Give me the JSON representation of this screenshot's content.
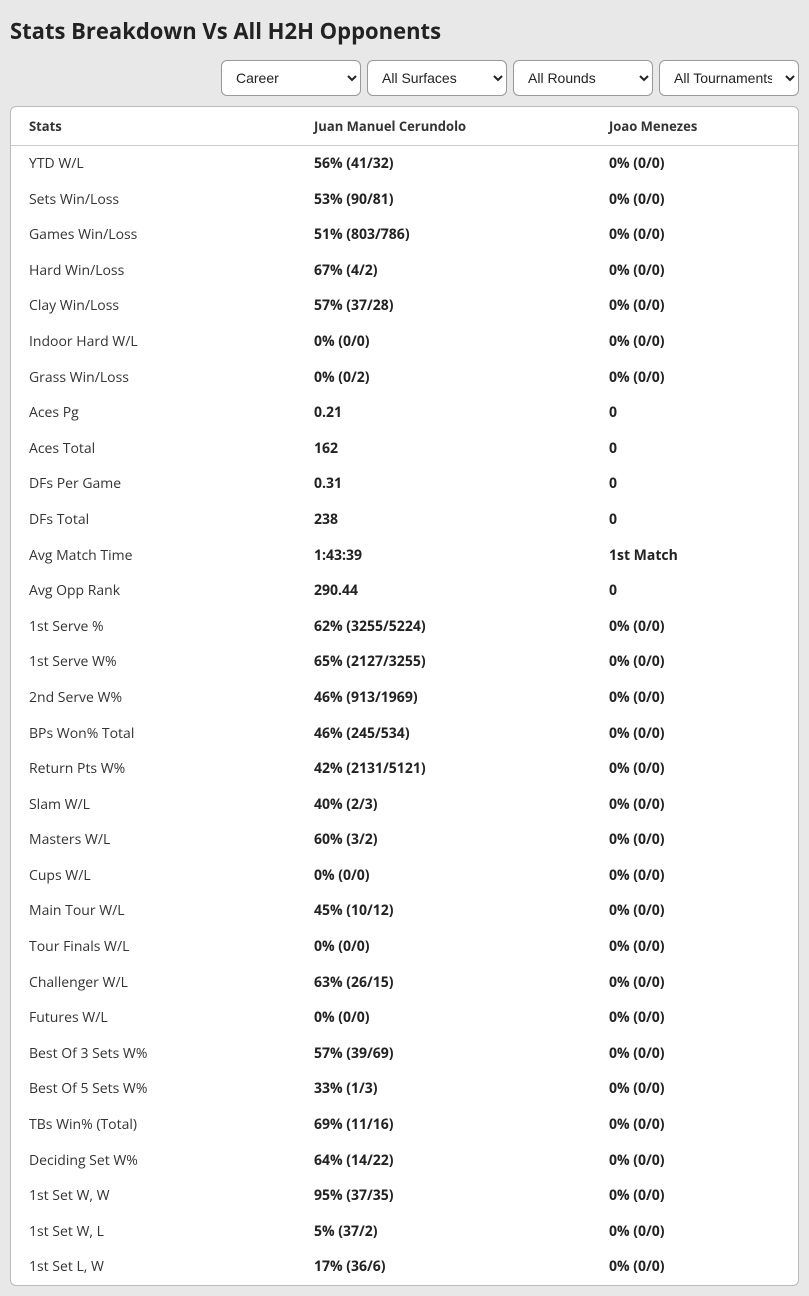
{
  "title": "Stats Breakdown Vs All H2H Opponents",
  "filters": {
    "time": "Career",
    "surface": "All Surfaces",
    "round": "All Rounds",
    "tournament": "All Tournaments"
  },
  "columns": {
    "stats": "Stats",
    "p1": "Juan Manuel Cerundolo",
    "p2": "Joao Menezes"
  },
  "rows": [
    {
      "label": "YTD W/L",
      "p1": "56% (41/32)",
      "p2": "0% (0/0)"
    },
    {
      "label": "Sets Win/Loss",
      "p1": "53% (90/81)",
      "p2": "0% (0/0)"
    },
    {
      "label": "Games Win/Loss",
      "p1": "51% (803/786)",
      "p2": "0% (0/0)"
    },
    {
      "label": "Hard Win/Loss",
      "p1": "67% (4/2)",
      "p2": "0% (0/0)"
    },
    {
      "label": "Clay Win/Loss",
      "p1": "57% (37/28)",
      "p2": "0% (0/0)"
    },
    {
      "label": "Indoor Hard W/L",
      "p1": "0% (0/0)",
      "p2": "0% (0/0)"
    },
    {
      "label": "Grass Win/Loss",
      "p1": "0% (0/2)",
      "p2": "0% (0/0)"
    },
    {
      "label": "Aces Pg",
      "p1": "0.21",
      "p2": "0"
    },
    {
      "label": "Aces Total",
      "p1": "162",
      "p2": "0"
    },
    {
      "label": "DFs Per Game",
      "p1": "0.31",
      "p2": "0"
    },
    {
      "label": "DFs Total",
      "p1": "238",
      "p2": "0"
    },
    {
      "label": "Avg Match Time",
      "p1": "1:43:39",
      "p2": "1st Match"
    },
    {
      "label": "Avg Opp Rank",
      "p1": "290.44",
      "p2": "0"
    },
    {
      "label": "1st Serve %",
      "p1": "62% (3255/5224)",
      "p2": "0% (0/0)"
    },
    {
      "label": "1st Serve W%",
      "p1": "65% (2127/3255)",
      "p2": "0% (0/0)"
    },
    {
      "label": "2nd Serve W%",
      "p1": "46% (913/1969)",
      "p2": "0% (0/0)"
    },
    {
      "label": "BPs Won% Total",
      "p1": "46% (245/534)",
      "p2": "0% (0/0)"
    },
    {
      "label": "Return Pts W%",
      "p1": "42% (2131/5121)",
      "p2": "0% (0/0)"
    },
    {
      "label": "Slam W/L",
      "p1": "40% (2/3)",
      "p2": "0% (0/0)"
    },
    {
      "label": "Masters W/L",
      "p1": "60% (3/2)",
      "p2": "0% (0/0)"
    },
    {
      "label": "Cups W/L",
      "p1": "0% (0/0)",
      "p2": "0% (0/0)"
    },
    {
      "label": "Main Tour W/L",
      "p1": "45% (10/12)",
      "p2": "0% (0/0)"
    },
    {
      "label": "Tour Finals W/L",
      "p1": "0% (0/0)",
      "p2": "0% (0/0)"
    },
    {
      "label": "Challenger W/L",
      "p1": "63% (26/15)",
      "p2": "0% (0/0)"
    },
    {
      "label": "Futures W/L",
      "p1": "0% (0/0)",
      "p2": "0% (0/0)"
    },
    {
      "label": "Best Of 3 Sets W%",
      "p1": "57% (39/69)",
      "p2": "0% (0/0)"
    },
    {
      "label": "Best Of 5 Sets W%",
      "p1": "33% (1/3)",
      "p2": "0% (0/0)"
    },
    {
      "label": "TBs Win% (Total)",
      "p1": "69% (11/16)",
      "p2": "0% (0/0)"
    },
    {
      "label": "Deciding Set W%",
      "p1": "64% (14/22)",
      "p2": "0% (0/0)"
    },
    {
      "label": "1st Set W, W",
      "p1": "95% (37/35)",
      "p2": "0% (0/0)"
    },
    {
      "label": "1st Set W, L",
      "p1": "5% (37/2)",
      "p2": "0% (0/0)"
    },
    {
      "label": "1st Set L, W",
      "p1": "17% (36/6)",
      "p2": "0% (0/0)"
    }
  ]
}
